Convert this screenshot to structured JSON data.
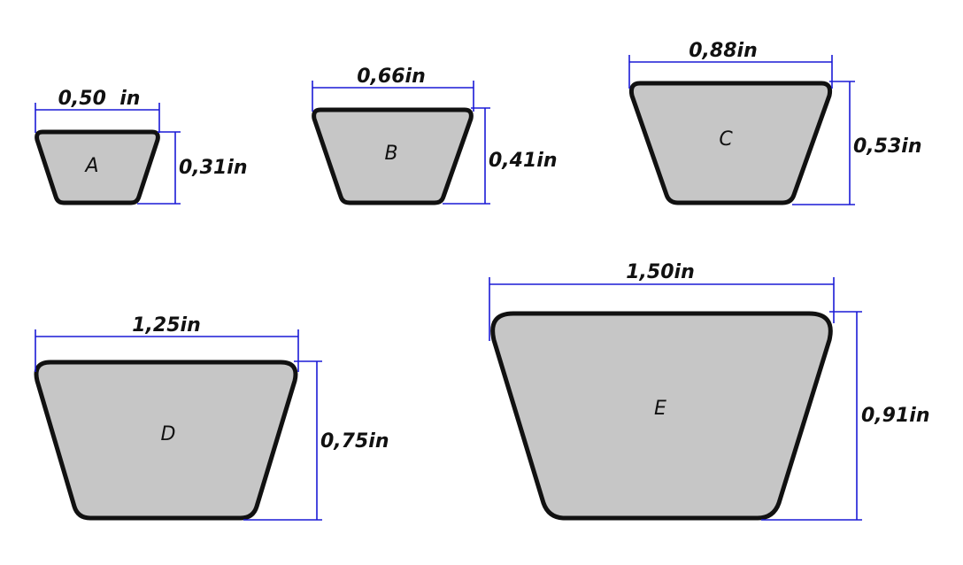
{
  "belts": [
    {
      "id": "A",
      "letter": "A",
      "top_width": "0,50  in",
      "height": "0,31in"
    },
    {
      "id": "B",
      "letter": "B",
      "top_width": "0,66in",
      "height": "0,41in"
    },
    {
      "id": "C",
      "letter": "C",
      "top_width": "0,88in",
      "height": "0,53in"
    },
    {
      "id": "D",
      "letter": "D",
      "top_width": "1,25in",
      "height": "0,75in"
    },
    {
      "id": "E",
      "letter": "E",
      "top_width": "1,50in",
      "height": "0,91in"
    }
  ],
  "colors": {
    "belt_fill": "#c6c6c6",
    "belt_outline": "#111111",
    "dimension_line": "#1a1ad6",
    "background": "#ffffff"
  }
}
